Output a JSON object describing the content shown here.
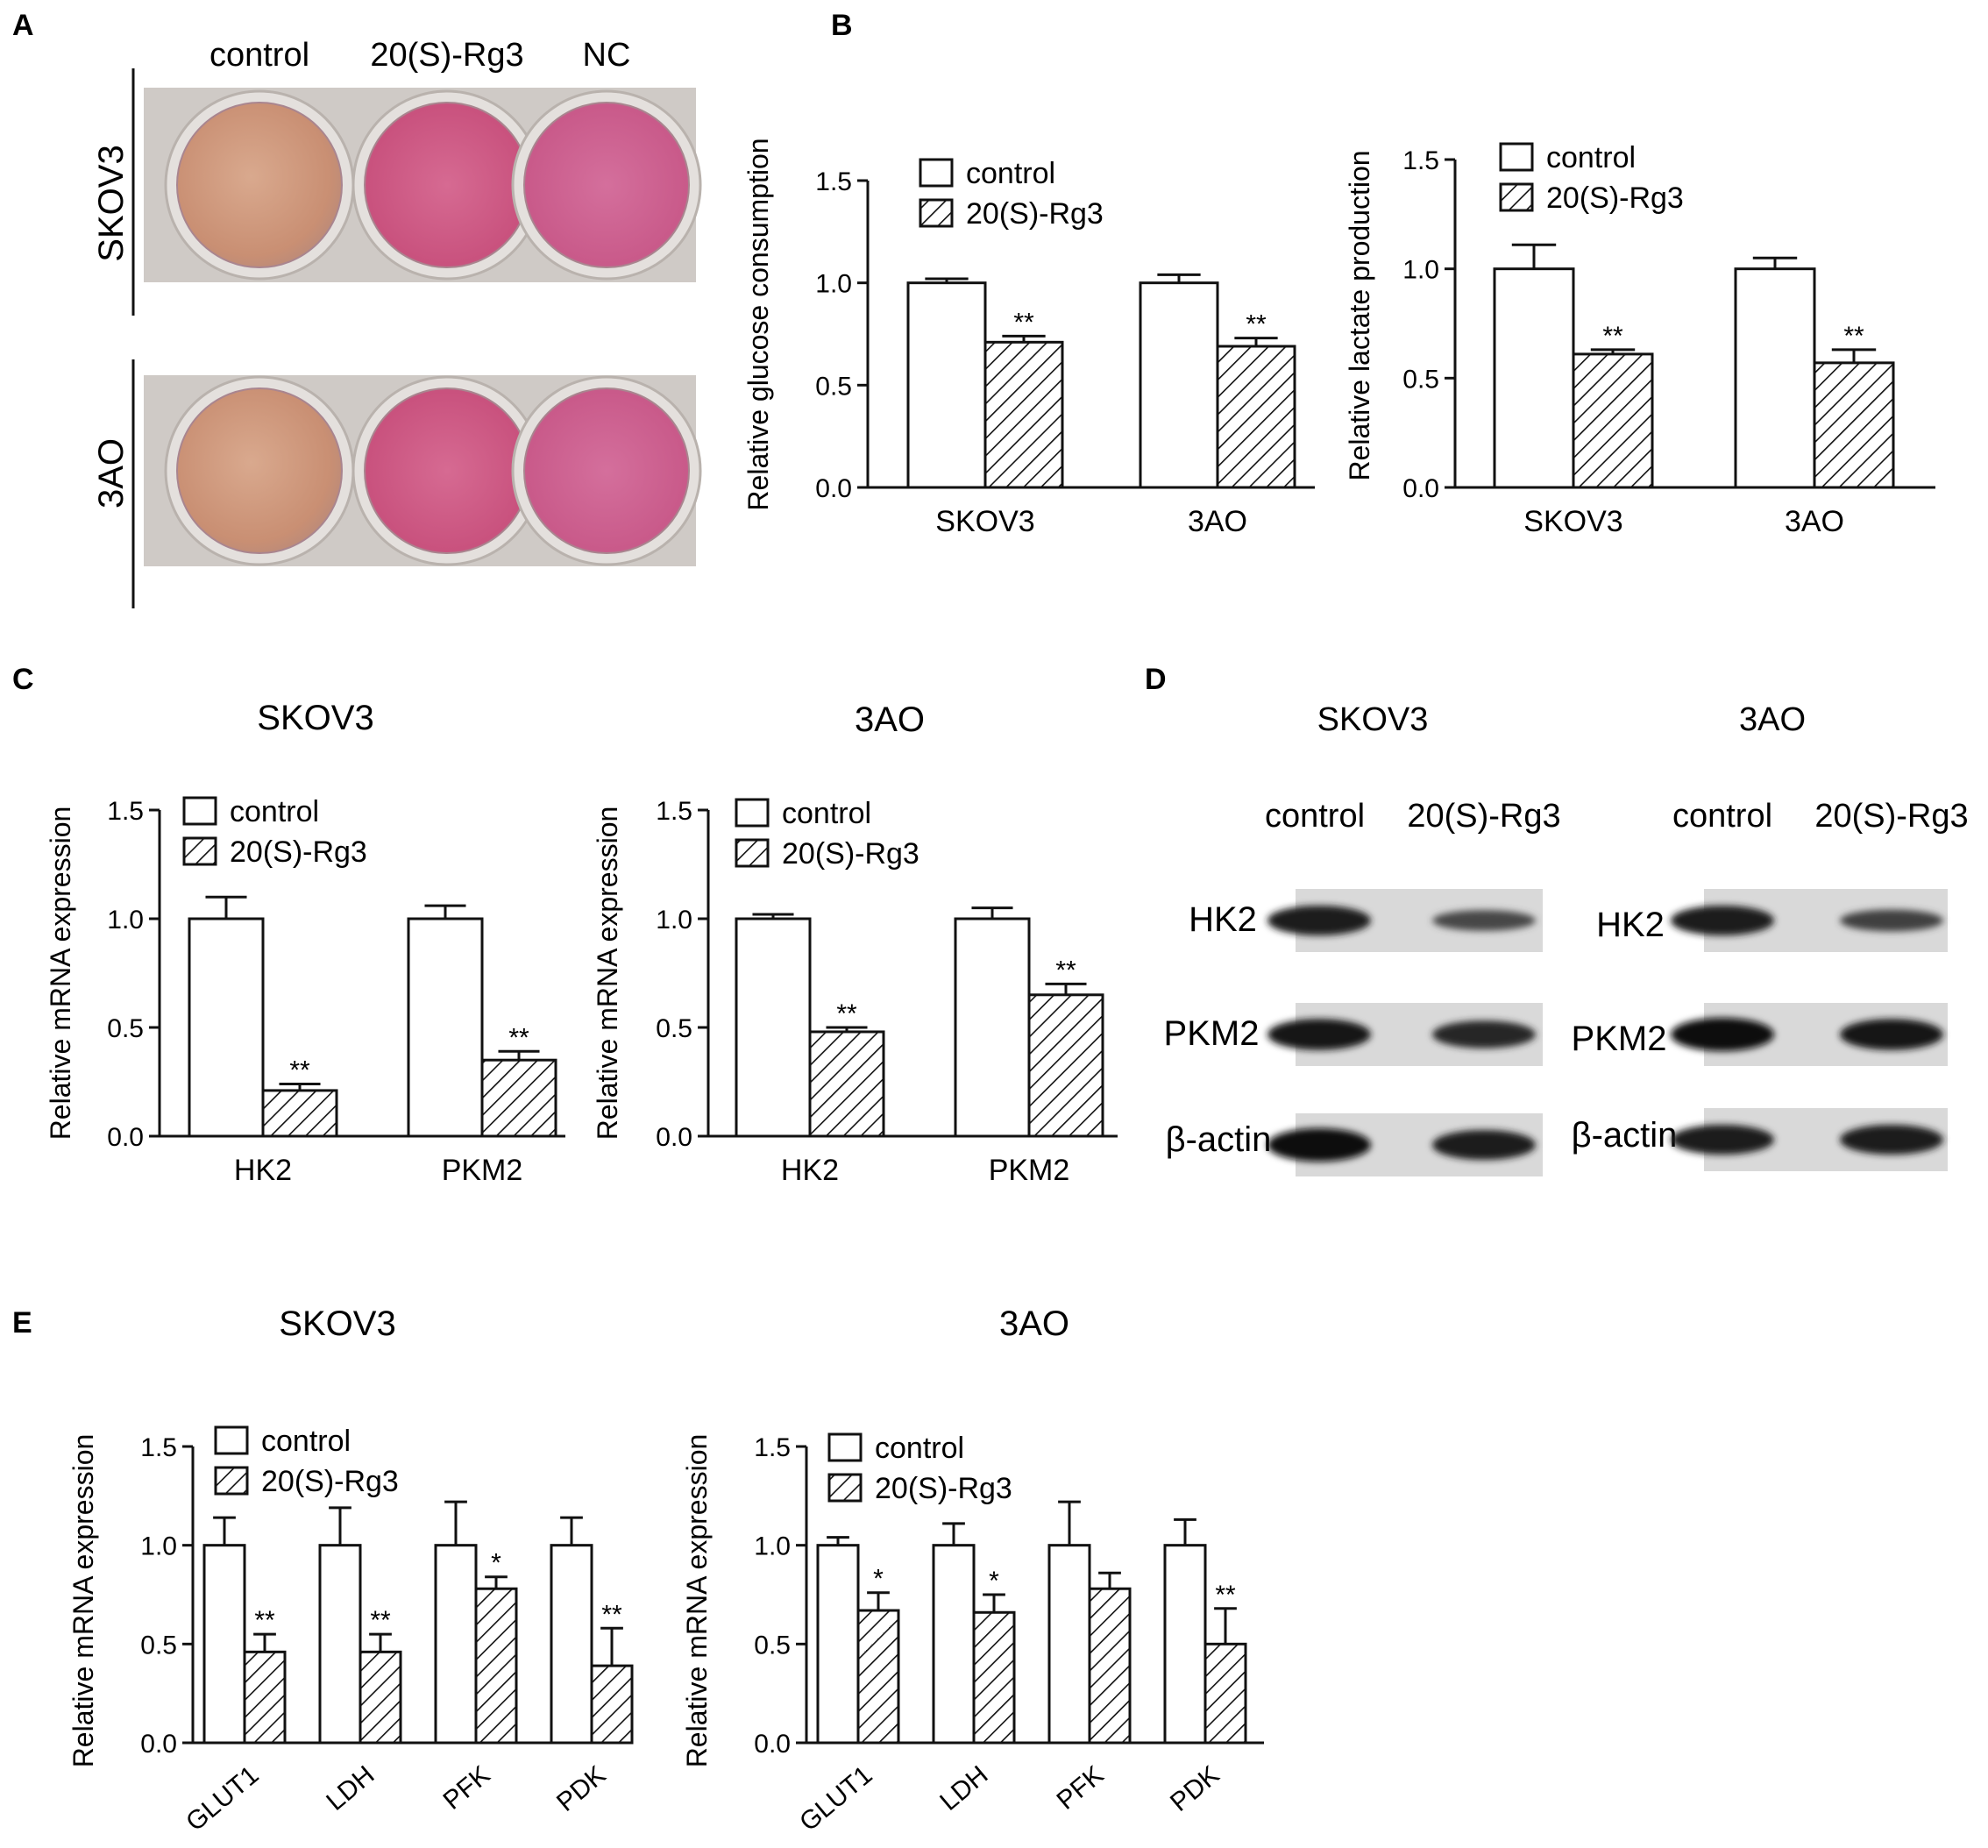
{
  "figure": {
    "panel_labels": [
      "A",
      "B",
      "C",
      "D",
      "E"
    ],
    "colors": {
      "ink": "#111111",
      "control_fill": "#ffffff",
      "treated_fill": "hatched"
    }
  },
  "panel_a": {
    "column_labels": [
      "control",
      "20(S)-Rg3",
      "NC"
    ],
    "row_labels": [
      "SKOV3",
      "3AO"
    ],
    "well_colors": {
      "control": "#d8a68c",
      "20(S)-Rg3": "#d66a92",
      "NC": "#d06897"
    }
  },
  "panel_d": {
    "groups": [
      {
        "title": "SKOV3",
        "lane_labels": [
          "control",
          "20(S)-Rg3"
        ],
        "rows": [
          "HK2",
          "PKM2",
          "β-actin"
        ],
        "band_intensity": [
          [
            0.85,
            0.45
          ],
          [
            0.9,
            0.75
          ],
          [
            1.0,
            0.85
          ]
        ]
      },
      {
        "title": "3AO",
        "lane_labels": [
          "control",
          "20(S)-Rg3"
        ],
        "rows": [
          "HK2",
          "PKM2",
          "β-actin"
        ],
        "band_intensity": [
          [
            0.85,
            0.5
          ],
          [
            1.0,
            0.9
          ],
          [
            0.85,
            0.85
          ]
        ]
      }
    ]
  },
  "chart_data": [
    {
      "id": "B1",
      "type": "bar",
      "title": "",
      "ylabel": "Relative glucose consumption",
      "ylim": [
        0,
        1.5
      ],
      "yticks": [
        "0.0",
        "0.5",
        "1.0",
        "1.5"
      ],
      "categories": [
        "SKOV3",
        "3AO"
      ],
      "series": [
        {
          "name": "control",
          "values": [
            1.0,
            1.0
          ],
          "errors": [
            0.02,
            0.04
          ]
        },
        {
          "name": "20(S)-Rg3",
          "values": [
            0.71,
            0.69
          ],
          "errors": [
            0.03,
            0.04
          ]
        }
      ],
      "significance": [
        "**",
        "**"
      ],
      "legend": "top-left",
      "x_label_rotation": 0
    },
    {
      "id": "B2",
      "type": "bar",
      "title": "",
      "ylabel": "Relative lactate production",
      "ylim": [
        0,
        1.5
      ],
      "yticks": [
        "0.0",
        "0.5",
        "1.0",
        "1.5"
      ],
      "categories": [
        "SKOV3",
        "3AO"
      ],
      "series": [
        {
          "name": "control",
          "values": [
            1.0,
            1.0
          ],
          "errors": [
            0.11,
            0.05
          ]
        },
        {
          "name": "20(S)-Rg3",
          "values": [
            0.61,
            0.57
          ],
          "errors": [
            0.02,
            0.06
          ]
        }
      ],
      "significance": [
        "**",
        "**"
      ],
      "legend": "top-left",
      "x_label_rotation": 0
    },
    {
      "id": "C1",
      "type": "bar",
      "title": "SKOV3",
      "ylabel": "Relative mRNA expression",
      "ylim": [
        0,
        1.5
      ],
      "yticks": [
        "0.0",
        "0.5",
        "1.0",
        "1.5"
      ],
      "categories": [
        "HK2",
        "PKM2"
      ],
      "series": [
        {
          "name": "control",
          "values": [
            1.0,
            1.0
          ],
          "errors": [
            0.1,
            0.06
          ]
        },
        {
          "name": "20(S)-Rg3",
          "values": [
            0.21,
            0.35
          ],
          "errors": [
            0.03,
            0.04
          ]
        }
      ],
      "significance": [
        "**",
        "**"
      ],
      "legend": "top-left",
      "x_label_rotation": 0
    },
    {
      "id": "C2",
      "type": "bar",
      "title": "3AO",
      "ylabel": "Relative mRNA expression",
      "ylim": [
        0,
        1.5
      ],
      "yticks": [
        "0.0",
        "0.5",
        "1.0",
        "1.5"
      ],
      "categories": [
        "HK2",
        "PKM2"
      ],
      "series": [
        {
          "name": "control",
          "values": [
            1.0,
            1.0
          ],
          "errors": [
            0.02,
            0.05
          ]
        },
        {
          "name": "20(S)-Rg3",
          "values": [
            0.48,
            0.65
          ],
          "errors": [
            0.02,
            0.05
          ]
        }
      ],
      "significance": [
        "**",
        "**"
      ],
      "legend": "top-left",
      "x_label_rotation": 0
    },
    {
      "id": "E1",
      "type": "bar",
      "title": "SKOV3",
      "ylabel": "Relative mRNA expression",
      "ylim": [
        0,
        1.5
      ],
      "yticks": [
        "0.0",
        "0.5",
        "1.0",
        "1.5"
      ],
      "categories": [
        "GLUT1",
        "LDH",
        "PFK",
        "PDK"
      ],
      "series": [
        {
          "name": "control",
          "values": [
            1.0,
            1.0,
            1.0,
            1.0
          ],
          "errors": [
            0.14,
            0.19,
            0.22,
            0.14
          ]
        },
        {
          "name": "20(S)-Rg3",
          "values": [
            0.46,
            0.46,
            0.78,
            0.39
          ],
          "errors": [
            0.09,
            0.09,
            0.06,
            0.19
          ]
        }
      ],
      "significance": [
        "**",
        "**",
        "*",
        "**"
      ],
      "legend": "top-left",
      "x_label_rotation": -40
    },
    {
      "id": "E2",
      "type": "bar",
      "title": "3AO",
      "ylabel": "Relative mRNA expression",
      "ylim": [
        0,
        1.5
      ],
      "yticks": [
        "0.0",
        "0.5",
        "1.0",
        "1.5"
      ],
      "categories": [
        "GLUT1",
        "LDH",
        "PFK",
        "PDK"
      ],
      "series": [
        {
          "name": "control",
          "values": [
            1.0,
            1.0,
            1.0,
            1.0
          ],
          "errors": [
            0.04,
            0.11,
            0.22,
            0.13
          ]
        },
        {
          "name": "20(S)-Rg3",
          "values": [
            0.67,
            0.66,
            0.78,
            0.5
          ],
          "errors": [
            0.09,
            0.09,
            0.08,
            0.18
          ]
        }
      ],
      "significance": [
        "*",
        "*",
        "",
        "**"
      ],
      "legend": "top-left",
      "x_label_rotation": -40
    }
  ]
}
